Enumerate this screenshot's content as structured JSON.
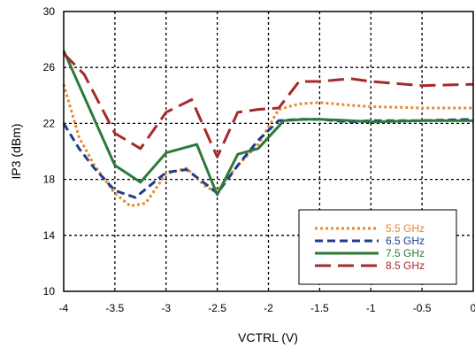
{
  "chart_data": {
    "type": "line",
    "title": "",
    "xlabel": "VCTRL (V)",
    "ylabel": "IP3 (dBm)",
    "xlim": [
      -4,
      0
    ],
    "ylim": [
      10,
      30
    ],
    "xticks": [
      -4,
      -3.5,
      -3,
      -2.5,
      -2,
      -1.5,
      -1,
      -0.5,
      0
    ],
    "xtick_labels": [
      "-4",
      "-3.5",
      "-3",
      "-2.5",
      "-2",
      "-1.5",
      "-1",
      "-0.5",
      "0"
    ],
    "yticks": [
      10,
      14,
      18,
      22,
      26,
      30
    ],
    "ytick_labels": [
      "10",
      "14",
      "18",
      "22",
      "26",
      "30"
    ],
    "grid": true,
    "legend_position": "bottom-right",
    "series": [
      {
        "name": "5.5 GHz",
        "color": "#e8892b",
        "dash": "dotted",
        "x": [
          -4,
          -3.85,
          -3.7,
          -3.5,
          -3.35,
          -3.2,
          -3.0,
          -2.8,
          -2.6,
          -2.5,
          -2.3,
          -2.1,
          -1.9,
          -1.7,
          -1.5,
          -1.2,
          -1.0,
          -0.5,
          0
        ],
        "y": [
          24.8,
          21.0,
          19.0,
          17.0,
          16.1,
          16.3,
          18.4,
          18.8,
          17.4,
          17.2,
          19.0,
          20.5,
          23.0,
          23.4,
          23.5,
          23.3,
          23.2,
          23.1,
          23.1
        ]
      },
      {
        "name": "6.5 GHz",
        "color": "#1f3c8f",
        "dash": "dashed",
        "x": [
          -4,
          -3.85,
          -3.7,
          -3.5,
          -3.3,
          -3.0,
          -2.8,
          -2.6,
          -2.5,
          -2.3,
          -2.1,
          -1.9,
          -1.7,
          -1.5,
          -1.2,
          -1.0,
          -0.5,
          0
        ],
        "y": [
          22.0,
          20.2,
          18.8,
          17.2,
          16.7,
          18.5,
          18.7,
          17.6,
          17.0,
          19.0,
          20.8,
          22.2,
          22.3,
          22.3,
          22.1,
          22.2,
          22.2,
          22.3
        ]
      },
      {
        "name": "7.5 GHz",
        "color": "#2a7a3a",
        "dash": "solid",
        "x": [
          -4,
          -3.5,
          -3.25,
          -3.0,
          -2.7,
          -2.5,
          -2.3,
          -2.1,
          -1.85,
          -1.65,
          -1.5,
          -1.2,
          -1.0,
          -0.5,
          0
        ],
        "y": [
          27.2,
          19.0,
          17.8,
          19.9,
          20.5,
          16.9,
          19.8,
          20.2,
          22.2,
          22.3,
          22.3,
          22.2,
          22.1,
          22.2,
          22.2
        ]
      },
      {
        "name": "8.5 GHz",
        "color": "#a52a2a",
        "dash": "longdash",
        "x": [
          -4,
          -3.8,
          -3.5,
          -3.25,
          -3.0,
          -2.75,
          -2.5,
          -2.3,
          -2.1,
          -1.9,
          -1.7,
          -1.5,
          -1.2,
          -1.0,
          -0.5,
          0
        ],
        "y": [
          27.0,
          25.5,
          21.3,
          20.2,
          22.8,
          23.7,
          19.6,
          22.8,
          23.0,
          23.1,
          25.0,
          25.0,
          25.2,
          25.0,
          24.7,
          24.8
        ]
      }
    ]
  }
}
